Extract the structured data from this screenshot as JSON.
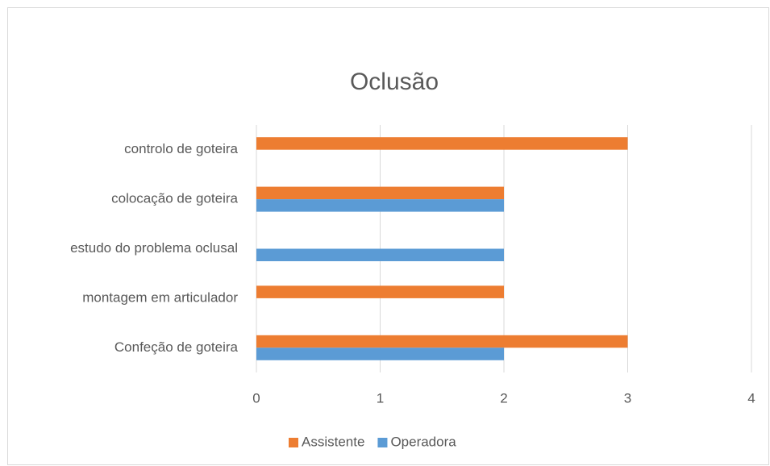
{
  "chart_data": {
    "type": "hbar",
    "title": "Oclusão",
    "categories": [
      "controlo de goteira",
      "colocação de goteira",
      "estudo do problema oclusal",
      "montagem em articulador",
      "Confeção de goteira"
    ],
    "series": [
      {
        "name": "Assistente",
        "color": "#ed7d31",
        "values": [
          3,
          2,
          0,
          2,
          3
        ]
      },
      {
        "name": "Operadora",
        "color": "#5b9bd5",
        "values": [
          0,
          2,
          2,
          0,
          2
        ]
      }
    ],
    "xlim": [
      0,
      4
    ],
    "xticks": [
      0,
      1,
      2,
      3,
      4
    ],
    "grid": true,
    "legend": "bottom"
  }
}
